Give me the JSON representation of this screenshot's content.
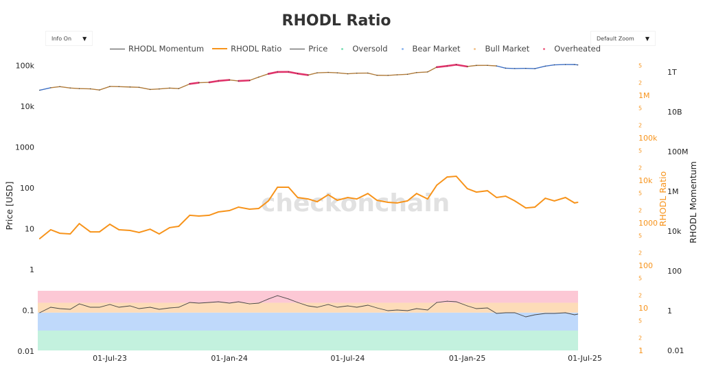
{
  "title": "RHODL Ratio",
  "controls": {
    "info_label": "Info On",
    "zoom_label": "Default Zoom",
    "arrow": "▼"
  },
  "watermark": "checkonchain",
  "legend": [
    {
      "label": "RHODL Momentum",
      "kind": "line",
      "color": "#444444"
    },
    {
      "label": "RHODL Ratio",
      "kind": "thick",
      "color": "#f7931a"
    },
    {
      "label": "Price",
      "kind": "line",
      "color": "#444444"
    },
    {
      "label": "Oversold",
      "kind": "dot",
      "color": "#7ee0b8"
    },
    {
      "label": "Bear Market",
      "kind": "dot",
      "color": "#8fb7f0"
    },
    {
      "label": "Bull Market",
      "kind": "dot",
      "color": "#f4c48e"
    },
    {
      "label": "Overheated",
      "kind": "dot",
      "color": "#f06a8a"
    }
  ],
  "chart_data": {
    "type": "line",
    "title": "RHODL Ratio",
    "xlim": [
      "2023-03-12",
      "2025-06-20"
    ],
    "x_ticks": [
      "01-Jul-23",
      "01-Jan-24",
      "01-Jul-24",
      "01-Jan-25",
      "01-Jul-25"
    ],
    "x_tick_dates": [
      "2023-07-01",
      "2024-01-01",
      "2024-07-01",
      "2025-01-01",
      "2025-07-01"
    ],
    "axes": {
      "price": {
        "label": "Price [USD]",
        "scale": "log",
        "range": [
          0.01,
          100000
        ],
        "ticks": [
          "0.01",
          "0.1",
          "1",
          "10",
          "100",
          "1000",
          "10k",
          "100k"
        ],
        "side": "left"
      },
      "ratio": {
        "label": "RHODL Ratio",
        "scale": "log",
        "range": [
          1,
          5000000
        ],
        "ticks": [
          "1",
          "10",
          "100",
          "1000",
          "10k",
          "100k",
          "1M"
        ],
        "minor_ticks": [
          "2",
          "5"
        ],
        "side": "right",
        "color": "#f7931a"
      },
      "momentum": {
        "label": "RHODL Momentum",
        "scale": "log",
        "range": [
          0.01,
          1000000000000
        ],
        "ticks": [
          "0.01",
          "1",
          "100",
          "10k",
          "1M",
          "100M",
          "10B",
          "1T"
        ],
        "side": "right"
      }
    },
    "bands": [
      {
        "name": "Oversold",
        "axis": "momentum",
        "from": 0.01,
        "to": 0.1,
        "color": "#c3f1de"
      },
      {
        "name": "Bear Market",
        "axis": "momentum",
        "from": 0.1,
        "to": 0.8,
        "color": "#bfd9fb"
      },
      {
        "name": "Bull Market",
        "axis": "momentum",
        "from": 0.8,
        "to": 2.5,
        "color": "#fddcb8"
      },
      {
        "name": "Overheated",
        "axis": "momentum",
        "from": 2.5,
        "to": 10,
        "color": "#fcc8d5"
      }
    ],
    "regime_colors": {
      "Bear Market": "#3d6fc4",
      "Bull Market": "#b07a38",
      "Overheated": "#e0336a"
    },
    "x": [
      "2023-03-15",
      "2023-04-01",
      "2023-04-15",
      "2023-05-01",
      "2023-05-15",
      "2023-06-01",
      "2023-06-15",
      "2023-07-01",
      "2023-07-15",
      "2023-08-01",
      "2023-08-15",
      "2023-09-01",
      "2023-09-15",
      "2023-10-01",
      "2023-10-15",
      "2023-11-01",
      "2023-11-15",
      "2023-12-01",
      "2023-12-15",
      "2024-01-01",
      "2024-01-15",
      "2024-02-01",
      "2024-02-15",
      "2024-03-01",
      "2024-03-15",
      "2024-04-01",
      "2024-04-15",
      "2024-05-01",
      "2024-05-15",
      "2024-06-01",
      "2024-06-15",
      "2024-07-01",
      "2024-07-15",
      "2024-08-01",
      "2024-08-15",
      "2024-09-01",
      "2024-09-15",
      "2024-10-01",
      "2024-10-15",
      "2024-11-01",
      "2024-11-15",
      "2024-12-01",
      "2024-12-15",
      "2025-01-01",
      "2025-01-15",
      "2025-02-01",
      "2025-02-15",
      "2025-03-01",
      "2025-03-15",
      "2025-04-01",
      "2025-04-15",
      "2025-05-01",
      "2025-05-15",
      "2025-06-01",
      "2025-06-15",
      "2025-06-20"
    ],
    "series": [
      {
        "name": "Price",
        "axis": "price",
        "values": [
          24800,
          28500,
          30300,
          28100,
          27200,
          26800,
          25100,
          30600,
          30300,
          29700,
          29200,
          25900,
          26600,
          27900,
          27200,
          35400,
          37900,
          38700,
          41900,
          44200,
          41700,
          43100,
          51900,
          62400,
          69400,
          69700,
          63400,
          58300,
          66200,
          67800,
          66000,
          62700,
          64800,
          65300,
          57600,
          57300,
          59200,
          60800,
          67000,
          69500,
          91100,
          97300,
          104500,
          94400,
          100500,
          100600,
          97600,
          86000,
          84300,
          85200,
          83700,
          96500,
          103700,
          105600,
          105500,
          103300
        ]
      },
      {
        "name": "RHODL Ratio",
        "axis": "ratio",
        "color": "#f7931a",
        "values": [
          425,
          690,
          570,
          550,
          960,
          615,
          615,
          930,
          690,
          665,
          595,
          710,
          550,
          775,
          830,
          1510,
          1450,
          1510,
          1810,
          1950,
          2350,
          2100,
          2180,
          3300,
          6900,
          6900,
          3950,
          3650,
          3150,
          4600,
          3400,
          3950,
          3650,
          4900,
          3400,
          3050,
          2950,
          3300,
          4900,
          3650,
          7700,
          12000,
          12500,
          6400,
          5300,
          5700,
          3950,
          4250,
          3300,
          2250,
          2350,
          3800,
          3300,
          3950,
          2950,
          3050
        ]
      },
      {
        "name": "RHODL Momentum",
        "axis": "momentum",
        "color": "#444444",
        "values": [
          0.79,
          1.49,
          1.27,
          1.17,
          2.2,
          1.49,
          1.49,
          2.04,
          1.49,
          1.74,
          1.27,
          1.49,
          1.17,
          1.37,
          1.49,
          2.6,
          2.4,
          2.6,
          2.8,
          2.4,
          2.8,
          2.2,
          2.4,
          3.9,
          5.7,
          3.9,
          2.6,
          1.74,
          1.49,
          2.04,
          1.49,
          1.74,
          1.49,
          1.89,
          1.37,
          1.0,
          1.08,
          1.0,
          1.27,
          1.08,
          2.6,
          3.0,
          2.8,
          1.74,
          1.27,
          1.37,
          0.73,
          0.79,
          0.79,
          0.49,
          0.62,
          0.73,
          0.73,
          0.79,
          0.62,
          0.67
        ]
      }
    ],
    "grid": false,
    "legend_position": "top"
  }
}
